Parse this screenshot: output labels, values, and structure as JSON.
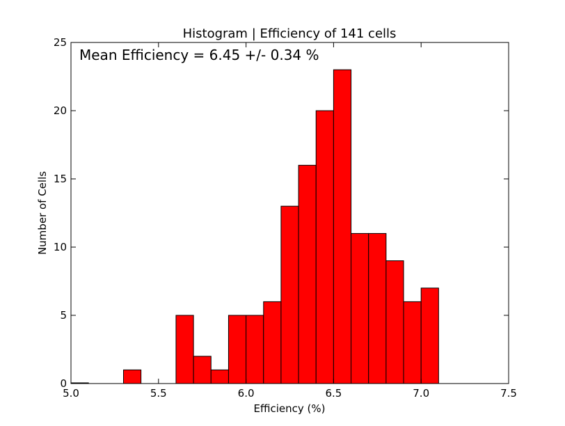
{
  "chart_data": {
    "type": "bar",
    "title": "Histogram | Efficiency of 141 cells",
    "xlabel": "Efficiency (%)",
    "ylabel": "Number of Cells",
    "annotation": "Mean Efficiency = 6.45 +/- 0.34 %",
    "xlim": [
      5.0,
      7.5
    ],
    "ylim": [
      0,
      25
    ],
    "xticks": [
      "5.0",
      "5.5",
      "6.0",
      "6.5",
      "7.0",
      "7.5"
    ],
    "yticks": [
      "0",
      "5",
      "10",
      "15",
      "20",
      "25"
    ],
    "bin_width": 0.1,
    "bins": [
      {
        "start": 5.0,
        "count": 0
      },
      {
        "start": 5.3,
        "count": 1
      },
      {
        "start": 5.6,
        "count": 5
      },
      {
        "start": 5.7,
        "count": 2
      },
      {
        "start": 5.8,
        "count": 1
      },
      {
        "start": 5.9,
        "count": 5
      },
      {
        "start": 6.0,
        "count": 5
      },
      {
        "start": 6.1,
        "count": 6
      },
      {
        "start": 6.2,
        "count": 13
      },
      {
        "start": 6.3,
        "count": 16
      },
      {
        "start": 6.4,
        "count": 20
      },
      {
        "start": 6.5,
        "count": 23
      },
      {
        "start": 6.6,
        "count": 11
      },
      {
        "start": 6.7,
        "count": 11
      },
      {
        "start": 6.8,
        "count": 9
      },
      {
        "start": 6.9,
        "count": 6
      },
      {
        "start": 7.0,
        "count": 7
      }
    ],
    "bar_color": "#ff0000",
    "edge_color": "#000000",
    "grid": false
  }
}
